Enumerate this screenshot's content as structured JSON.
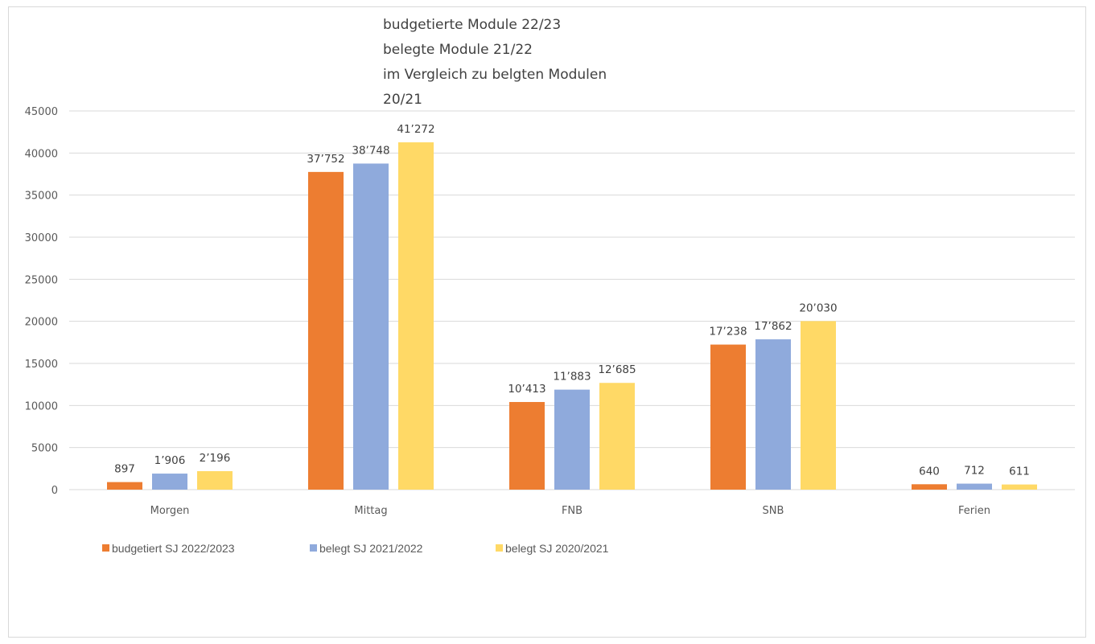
{
  "chart_data": {
    "type": "bar",
    "title_lines": [
      "budgetierte Module 22/23",
      "belegte Module 21/22",
      "im Vergleich zu belgten Modulen",
      "20/21"
    ],
    "categories": [
      "Morgen",
      "Mittag",
      "FNB",
      "SNB",
      "Ferien"
    ],
    "series": [
      {
        "name": "budgetiert SJ 2022/2023",
        "color": "#ED7D31",
        "values": [
          897,
          37752,
          10413,
          17238,
          640
        ],
        "labels": [
          "897",
          "37’752",
          "10’413",
          "17’238",
          "640"
        ]
      },
      {
        "name": "belegt SJ 2021/2022",
        "color": "#8FAADC",
        "values": [
          1906,
          38748,
          11883,
          17862,
          712
        ],
        "labels": [
          "1’906",
          "38’748",
          "11’883",
          "17’862",
          "712"
        ]
      },
      {
        "name": "belegt SJ 2020/2021",
        "color": "#FFD966",
        "values": [
          2196,
          41272,
          12685,
          20030,
          611
        ],
        "labels": [
          "2’196",
          "41’272",
          "12’685",
          "20’030",
          "611"
        ]
      }
    ],
    "ylim": [
      0,
      45000
    ],
    "yticks": [
      "0",
      "5000",
      "10000",
      "15000",
      "20000",
      "25000",
      "30000",
      "35000",
      "40000",
      "45000"
    ],
    "grid": true,
    "legend_position": "bottom-left"
  }
}
